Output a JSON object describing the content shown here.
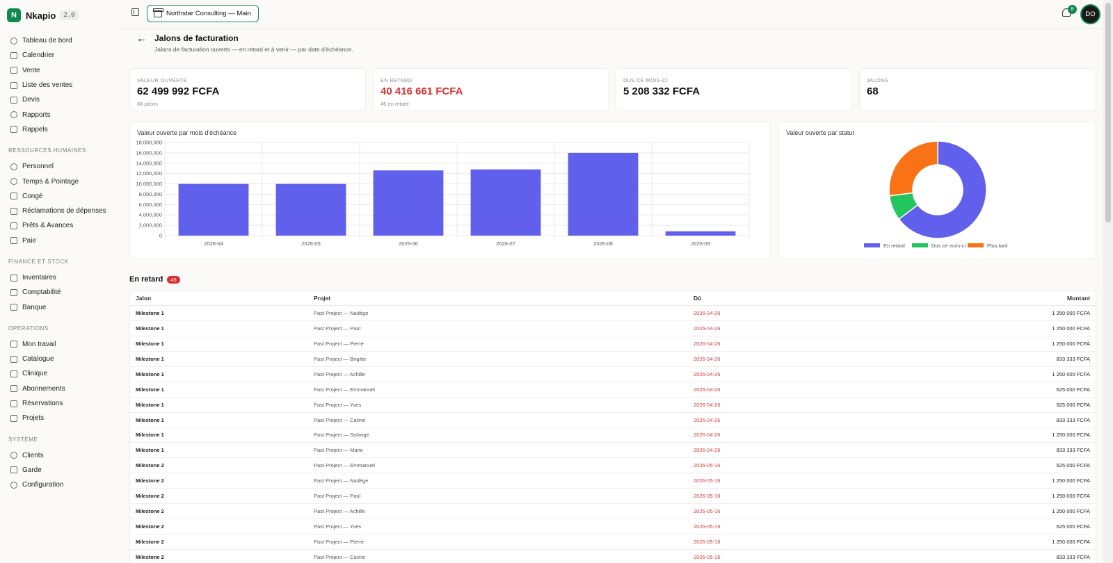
{
  "brand": {
    "logo_letter": "N",
    "name": "Nkapio",
    "version": "2.0"
  },
  "sidebar": {
    "top_items": [
      {
        "label": "Tableau de bord",
        "icon": "dashboard-icon"
      },
      {
        "label": "Calendrier",
        "icon": "calendar-icon"
      },
      {
        "label": "Vente",
        "icon": "pos-icon"
      },
      {
        "label": "Liste des ventes",
        "icon": "cart-icon"
      },
      {
        "label": "Devis",
        "icon": "document-icon"
      },
      {
        "label": "Rapports",
        "icon": "pie-icon"
      },
      {
        "label": "Rappels",
        "icon": "reminder-icon"
      }
    ],
    "sections": [
      {
        "title": "RESSOURCES HUMAINES",
        "items": [
          {
            "label": "Personnel",
            "icon": "users-icon"
          },
          {
            "label": "Temps & Pointage",
            "icon": "clock-icon"
          },
          {
            "label": "Congé",
            "icon": "leave-icon"
          },
          {
            "label": "Réclamations de dépenses",
            "icon": "receipt-icon"
          },
          {
            "label": "Prêts & Avances",
            "icon": "loan-icon"
          },
          {
            "label": "Paie",
            "icon": "payroll-icon"
          }
        ]
      },
      {
        "title": "FINANCE ET STOCK",
        "items": [
          {
            "label": "Inventaires",
            "icon": "inventory-icon"
          },
          {
            "label": "Comptabilité",
            "icon": "book-icon"
          },
          {
            "label": "Banque",
            "icon": "bank-icon"
          }
        ]
      },
      {
        "title": "OPÉRATIONS",
        "items": [
          {
            "label": "Mon travail",
            "icon": "wrench-icon",
            "no_chevron": true
          },
          {
            "label": "Catalogue",
            "icon": "catalog-icon"
          },
          {
            "label": "Clinique",
            "icon": "stethoscope-icon"
          },
          {
            "label": "Abonnements",
            "icon": "repeat-icon"
          },
          {
            "label": "Réservations",
            "icon": "booking-icon"
          },
          {
            "label": "Projets",
            "icon": "projects-icon"
          }
        ]
      },
      {
        "title": "SYSTÈME",
        "items": [
          {
            "label": "Clients",
            "icon": "user-icon",
            "no_chevron": true
          },
          {
            "label": "Garde",
            "icon": "shield-icon"
          },
          {
            "label": "Configuration",
            "icon": "gear-icon",
            "no_chevron": true
          }
        ]
      }
    ]
  },
  "topbar": {
    "org_label": "Northstar Consulting — Main",
    "notification_count": "8",
    "avatar_initials": "DO"
  },
  "page": {
    "title": "Jalons de facturation",
    "subtitle": "Jalons de facturation ouverts — en retard et à venir — par date d'échéance."
  },
  "kpis": [
    {
      "label": "VALEUR OUVERTE",
      "value": "62 499 992 FCFA",
      "note": "68 jalons"
    },
    {
      "label": "EN RETARD",
      "value": "40 416 661 FCFA",
      "note": "45 en retard",
      "alert": true
    },
    {
      "label": "DUS CE MOIS-CI",
      "value": "5 208 332 FCFA",
      "note": ""
    },
    {
      "label": "JALONS",
      "value": "68",
      "note": ""
    }
  ],
  "colors": {
    "bar": "#6060ec",
    "overdue": "#6060ec",
    "due_month": "#22c55e",
    "later": "#f97316",
    "accent": "#10894f",
    "alert": "#dc3030"
  },
  "chart_data": [
    {
      "type": "bar",
      "title": "Valeur ouverte par mois d'échéance",
      "categories": [
        "2026-04",
        "2026-05",
        "2026-06",
        "2026-07",
        "2026-08",
        "2026-09"
      ],
      "values": [
        9999998,
        9999998,
        12600000,
        12800000,
        15999996,
        833333
      ],
      "ylim": [
        0,
        18000000
      ],
      "yticks": [
        "0",
        "2,000,000",
        "4,000,000",
        "6,000,000",
        "8,000,000",
        "10,000,000",
        "12,000,000",
        "14,000,000",
        "16,000,000",
        "18,000,000"
      ],
      "grid": true
    },
    {
      "type": "pie",
      "title": "Valeur ouverte par statut",
      "categories": [
        "En retard",
        "Dus ce mois-ci",
        "Plus tard"
      ],
      "values": [
        40416661,
        5208332,
        16874999
      ],
      "legend": "bottom"
    }
  ],
  "table": {
    "title": "En retard",
    "count": "45",
    "headers": {
      "milestone": "Jalon",
      "project": "Projet",
      "due": "Dû",
      "amount": "Montant"
    },
    "rows": [
      {
        "milestone": "Milestone 1",
        "project": "Past Project — Nadège",
        "due": "2026-04-26",
        "amount": "1 250 000 FCFA"
      },
      {
        "milestone": "Milestone 1",
        "project": "Past Project — Paul",
        "due": "2026-04-26",
        "amount": "1 250 000 FCFA"
      },
      {
        "milestone": "Milestone 1",
        "project": "Past Project — Pierre",
        "due": "2026-04-26",
        "amount": "1 250 000 FCFA"
      },
      {
        "milestone": "Milestone 1",
        "project": "Past Project — Brigitte",
        "due": "2026-04-26",
        "amount": "833 333 FCFA"
      },
      {
        "milestone": "Milestone 1",
        "project": "Past Project — Achille",
        "due": "2026-04-26",
        "amount": "1 250 000 FCFA"
      },
      {
        "milestone": "Milestone 1",
        "project": "Past Project — Emmanuel",
        "due": "2026-04-26",
        "amount": "625 000 FCFA"
      },
      {
        "milestone": "Milestone 1",
        "project": "Past Project — Yves",
        "due": "2026-04-26",
        "amount": "625 000 FCFA"
      },
      {
        "milestone": "Milestone 1",
        "project": "Past Project — Carine",
        "due": "2026-04-26",
        "amount": "833 333 FCFA"
      },
      {
        "milestone": "Milestone 1",
        "project": "Past Project — Solange",
        "due": "2026-04-26",
        "amount": "1 250 000 FCFA"
      },
      {
        "milestone": "Milestone 1",
        "project": "Past Project — Marie",
        "due": "2026-04-26",
        "amount": "833 333 FCFA"
      },
      {
        "milestone": "Milestone 2",
        "project": "Past Project — Emmanuel",
        "due": "2026-05-16",
        "amount": "625 000 FCFA"
      },
      {
        "milestone": "Milestone 2",
        "project": "Past Project — Nadège",
        "due": "2026-05-16",
        "amount": "1 250 000 FCFA"
      },
      {
        "milestone": "Milestone 2",
        "project": "Past Project — Paul",
        "due": "2026-05-16",
        "amount": "1 250 000 FCFA"
      },
      {
        "milestone": "Milestone 2",
        "project": "Past Project — Achille",
        "due": "2026-05-16",
        "amount": "1 250 000 FCFA"
      },
      {
        "milestone": "Milestone 2",
        "project": "Past Project — Yves",
        "due": "2026-05-16",
        "amount": "625 000 FCFA"
      },
      {
        "milestone": "Milestone 2",
        "project": "Past Project — Pierre",
        "due": "2026-05-16",
        "amount": "1 250 000 FCFA"
      },
      {
        "milestone": "Milestone 2",
        "project": "Past Project — Carine",
        "due": "2026-05-16",
        "amount": "833 333 FCFA"
      }
    ]
  }
}
